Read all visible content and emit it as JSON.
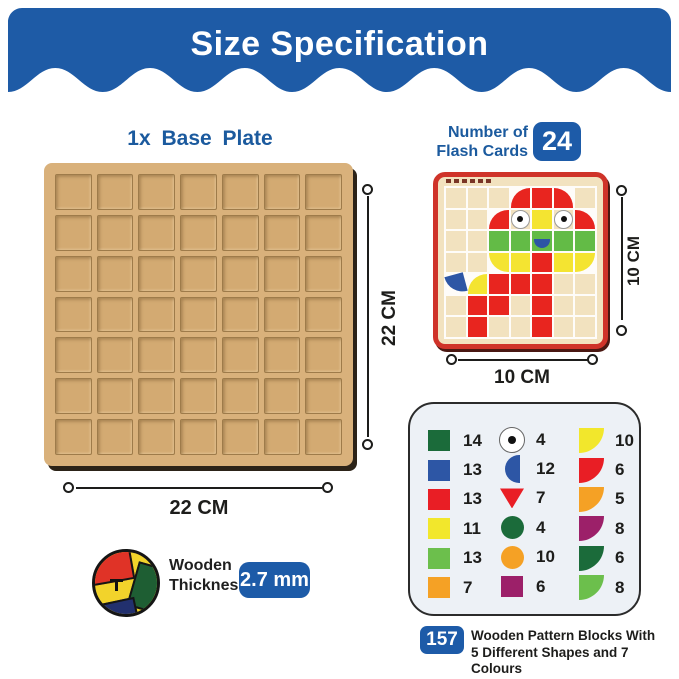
{
  "banner": {
    "title": "Size Specification",
    "bg": "#1e5ba6"
  },
  "palette": {
    "red": "#e8251f",
    "yellow": "#f4e431",
    "green": "#63bb46",
    "blue": "#2d56a5",
    "cream": "#f2e2bf",
    "white": "#ffffff"
  },
  "base_plate": {
    "title": "1x Base Plate",
    "rows": 7,
    "cols": 7,
    "height_dim": "22 CM",
    "width_dim": "22 CM"
  },
  "flash_card": {
    "count_label_line1": "Number of",
    "count_label_line2": "Flash Cards",
    "count": "24",
    "height_dim": "10 CM",
    "width_dim": "10 CM",
    "grid": {
      "rows": 7,
      "cols": 7
    },
    "mosaic_cells": [
      {
        "r": 1,
        "c": 4,
        "color": "red",
        "shape": "quarter-tl"
      },
      {
        "r": 1,
        "c": 5,
        "color": "red",
        "shape": "square"
      },
      {
        "r": 1,
        "c": 6,
        "color": "red",
        "shape": "quarter-tr"
      },
      {
        "r": 2,
        "c": 3,
        "color": "red",
        "shape": "quarter-tl"
      },
      {
        "r": 2,
        "c": 4,
        "color": "cream",
        "shape": "eye"
      },
      {
        "r": 2,
        "c": 5,
        "color": "yellow",
        "shape": "square"
      },
      {
        "r": 2,
        "c": 6,
        "color": "cream",
        "shape": "eye"
      },
      {
        "r": 2,
        "c": 7,
        "color": "red",
        "shape": "quarter-tr"
      },
      {
        "r": 3,
        "c": 3,
        "color": "green",
        "shape": "square"
      },
      {
        "r": 3,
        "c": 4,
        "color": "green",
        "shape": "square"
      },
      {
        "r": 3,
        "c": 5,
        "color": "green",
        "shape": "smile"
      },
      {
        "r": 3,
        "c": 6,
        "color": "green",
        "shape": "square"
      },
      {
        "r": 3,
        "c": 7,
        "color": "green",
        "shape": "square"
      },
      {
        "r": 4,
        "c": 3,
        "color": "yellow",
        "shape": "quarter-bl"
      },
      {
        "r": 4,
        "c": 4,
        "color": "yellow",
        "shape": "square"
      },
      {
        "r": 4,
        "c": 5,
        "color": "red",
        "shape": "square"
      },
      {
        "r": 4,
        "c": 6,
        "color": "yellow",
        "shape": "square"
      },
      {
        "r": 4,
        "c": 7,
        "color": "yellow",
        "shape": "quarter-br"
      },
      {
        "r": 5,
        "c": 1,
        "color": "blue",
        "shape": "tail"
      },
      {
        "r": 5,
        "c": 2,
        "color": "yellow",
        "shape": "quarter-tl"
      },
      {
        "r": 5,
        "c": 3,
        "color": "red",
        "shape": "square"
      },
      {
        "r": 5,
        "c": 4,
        "color": "red",
        "shape": "square"
      },
      {
        "r": 5,
        "c": 5,
        "color": "red",
        "shape": "square"
      },
      {
        "r": 6,
        "c": 2,
        "color": "red",
        "shape": "square"
      },
      {
        "r": 6,
        "c": 3,
        "color": "red",
        "shape": "square"
      },
      {
        "r": 6,
        "c": 5,
        "color": "red",
        "shape": "square"
      },
      {
        "r": 7,
        "c": 2,
        "color": "red",
        "shape": "square"
      },
      {
        "r": 7,
        "c": 5,
        "color": "red",
        "shape": "square"
      }
    ]
  },
  "inventory": {
    "columns": [
      {
        "items": [
          {
            "shape": "square",
            "color": "#1b6b3a",
            "count": "14"
          },
          {
            "shape": "square",
            "color": "#2d56a5",
            "count": "13"
          },
          {
            "shape": "square",
            "color": "#e91e25",
            "count": "13"
          },
          {
            "shape": "square",
            "color": "#f2e72c",
            "count": "11"
          },
          {
            "shape": "square",
            "color": "#6cbf4c",
            "count": "13"
          },
          {
            "shape": "square",
            "color": "#f5a125",
            "count": "7"
          }
        ]
      },
      {
        "items": [
          {
            "shape": "circle-dot",
            "color": "#ffffff",
            "count": "4"
          },
          {
            "shape": "semicircle",
            "color": "#2d56a5",
            "count": "12"
          },
          {
            "shape": "triangle",
            "color": "#e91e25",
            "count": "7"
          },
          {
            "shape": "circle",
            "color": "#1b6b3a",
            "count": "4"
          },
          {
            "shape": "circle",
            "color": "#f5a125",
            "count": "10"
          },
          {
            "shape": "square",
            "color": "#9c2069",
            "count": "6"
          }
        ]
      },
      {
        "items": [
          {
            "shape": "quarter",
            "color": "#f2e72c",
            "count": "10"
          },
          {
            "shape": "quarter",
            "color": "#e91e25",
            "count": "6"
          },
          {
            "shape": "quarter",
            "color": "#f5a125",
            "count": "5"
          },
          {
            "shape": "quarter",
            "color": "#9c2069",
            "count": "8"
          },
          {
            "shape": "quarter",
            "color": "#1b6b3a",
            "count": "6"
          },
          {
            "shape": "quarter",
            "color": "#6cbf4c",
            "count": "8"
          }
        ]
      }
    ]
  },
  "thickness": {
    "line1": "Wooden",
    "line2": "Thickness",
    "value": "2.7 mm"
  },
  "total_blocks": {
    "count": "157",
    "line1": "Wooden Pattern Blocks With",
    "line2": "5 Different Shapes and 7 Colours"
  }
}
